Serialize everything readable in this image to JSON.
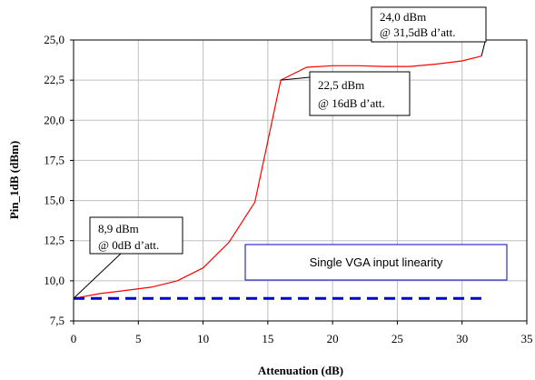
{
  "chart_data": {
    "type": "line",
    "xlabel": "Attenuation (dB)",
    "ylabel": "Pin_1dB (dBm)",
    "xlim": [
      0,
      35
    ],
    "ylim": [
      7.5,
      25.0
    ],
    "x_ticks": [
      0,
      5,
      10,
      15,
      20,
      25,
      30,
      35
    ],
    "x_tick_labels": [
      "0",
      "5",
      "10",
      "15",
      "20",
      "25",
      "30",
      "35"
    ],
    "y_ticks": [
      7.5,
      10.0,
      12.5,
      15.0,
      17.5,
      20.0,
      22.5,
      25.0
    ],
    "y_tick_labels": [
      "7,5",
      "10,0",
      "12,5",
      "15,0",
      "17,5",
      "20,0",
      "22,5",
      "25,0"
    ],
    "grid": true,
    "series": [
      {
        "color": "#ff0000",
        "style": "solid",
        "x": [
          0,
          2,
          4,
          6,
          8,
          10,
          12,
          14,
          16,
          18,
          20,
          22,
          24,
          26,
          28,
          30,
          31.5
        ],
        "values": [
          8.9,
          9.2,
          9.4,
          9.6,
          10.0,
          10.8,
          12.4,
          14.9,
          22.5,
          23.3,
          23.4,
          23.4,
          23.35,
          23.35,
          23.5,
          23.7,
          24.0
        ]
      },
      {
        "color": "#0000cc",
        "style": "dashed",
        "x": [
          0,
          31.5
        ],
        "values": [
          8.9,
          8.9
        ]
      }
    ],
    "annotations": [
      {
        "line1": "8,9 dBm",
        "line2": "@ 0dB d’att.",
        "x": 0,
        "y": 8.9
      },
      {
        "line1": "22,5 dBm",
        "line2": "@ 16dB d’att.",
        "x": 16,
        "y": 22.5
      },
      {
        "line1": "24,0 dBm",
        "line2": "@ 31,5dB d’att.",
        "x": 31.5,
        "y": 24.0
      }
    ],
    "legend_box": {
      "text": "Single VGA input linearity",
      "border_color": "#0000cc"
    }
  }
}
